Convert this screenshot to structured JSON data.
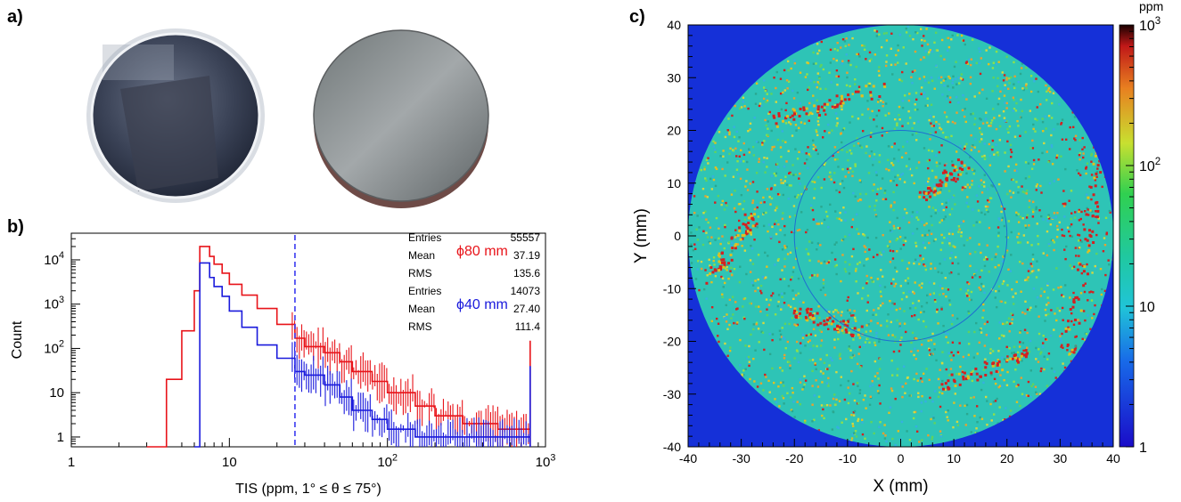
{
  "panel_labels": {
    "a": "a)",
    "b": "b)",
    "c": "c)"
  },
  "chart_data": [
    {
      "type": "histogram",
      "panel": "b)",
      "xlabel": "TIS (ppm, 1° ≤ θ ≤ 75°)",
      "ylabel": "Count",
      "xscale": "log",
      "yscale": "log",
      "xlim": [
        1,
        1000
      ],
      "ylim": [
        0.6,
        40000
      ],
      "x_ticks": [
        "1",
        "10",
        "10^2",
        "10^3"
      ],
      "y_ticks": [
        "1",
        "10",
        "10^2",
        "10^3",
        "10^4"
      ],
      "vline_x": 26,
      "series": [
        {
          "name": "ϕ80 mm",
          "color": "#e8141a",
          "stats": {
            "entries_label": "Entries",
            "entries": "55557",
            "mean_label": "Mean",
            "mean": "37.19",
            "rms_label": "RMS",
            "rms": "135.6"
          },
          "x": [
            3,
            4,
            5,
            6,
            6.5,
            7,
            7.5,
            8,
            9,
            10,
            12,
            15,
            20,
            26,
            30,
            40,
            50,
            60,
            80,
            100,
            150,
            200,
            300,
            500,
            780,
            800
          ],
          "y": [
            0,
            20,
            250,
            2000,
            20000,
            20000,
            12000,
            8000,
            5000,
            2800,
            1600,
            800,
            350,
            170,
            110,
            80,
            50,
            30,
            18,
            10,
            5,
            3,
            2,
            1.5,
            1.5,
            150
          ]
        },
        {
          "name": "ϕ40 mm",
          "color": "#1a1adc",
          "stats": {
            "entries_label": "Entries",
            "entries": "14073",
            "mean_label": "Mean",
            "mean": "27.40",
            "rms_label": "RMS",
            "rms": "111.4"
          },
          "x": [
            6,
            6.5,
            7,
            7.5,
            8,
            9,
            10,
            12,
            15,
            20,
            26,
            30,
            40,
            50,
            60,
            80,
            100,
            150,
            200,
            300,
            500,
            780,
            800
          ],
          "y": [
            0,
            8500,
            8500,
            4000,
            2500,
            1500,
            700,
            300,
            120,
            60,
            30,
            25,
            15,
            8,
            4,
            2.5,
            1.5,
            1,
            1,
            1,
            1,
            1,
            40
          ]
        }
      ]
    },
    {
      "type": "heatmap",
      "panel": "c)",
      "xlabel": "X (mm)",
      "ylabel": "Y (mm)",
      "xlim": [
        -40,
        40
      ],
      "ylim": [
        -40,
        40
      ],
      "x_ticks": [
        "-40",
        "-30",
        "-20",
        "-10",
        "0",
        "10",
        "20",
        "30",
        "40"
      ],
      "y_ticks": [
        "-40",
        "-30",
        "-20",
        "-10",
        "0",
        "10",
        "20",
        "30",
        "40"
      ],
      "outer_circle_diameter_mm": 80,
      "inner_circle_diameter_mm": 40,
      "colorbar": {
        "label": "ppm",
        "scale": "log",
        "range": [
          1,
          1000
        ],
        "ticks": [
          "1",
          "10",
          "10^2",
          "10^3"
        ]
      },
      "colors": {
        "background": "#1530d8",
        "mean_level": "#2ec4b6",
        "hot": "#d42020",
        "warm": "#e0c020"
      }
    }
  ]
}
